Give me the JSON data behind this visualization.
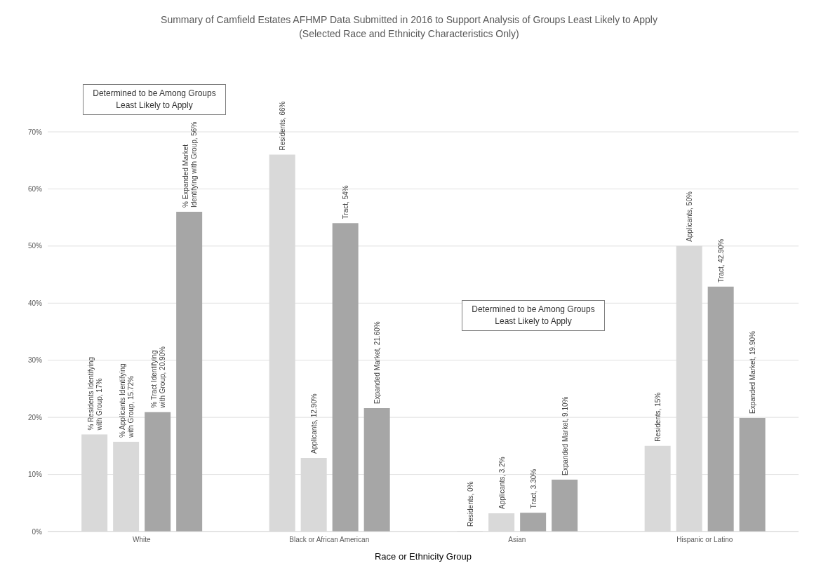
{
  "chart_data": {
    "type": "bar",
    "title": "Summary of Camfield Estates AFHMP Data Submitted in 2016 to Support Analysis of Groups Least Likely to Apply",
    "subtitle": "(Selected Race and Ethnicity Characteristics Only)",
    "xlabel": "Race or Ethnicity Group",
    "categories": [
      "White",
      "Black or African American",
      "Asian",
      "Hispanic or Latino"
    ],
    "series": [
      {
        "color": "#d9d9d9",
        "values": [
          17,
          66,
          0,
          15
        ],
        "value_labels": [
          "% Residents Identifying with Group, 17%",
          "Residents, 66%",
          "Residents, 0%",
          "Residents, 15%"
        ]
      },
      {
        "color": "#d9d9d9",
        "values": [
          15.72,
          12.9,
          3.2,
          50
        ],
        "value_labels": [
          "% Applicants Identifying with Group, 15.72%",
          "Applicants, 12.90%",
          "Applicants, 3.2%",
          "Applicants, 50%"
        ]
      },
      {
        "color": "#a6a6a6",
        "values": [
          20.9,
          54,
          3.3,
          42.9
        ],
        "value_labels": [
          "% Tract Identifying with Group, 20.90%",
          "Tract, 54%",
          "Tract, 3.30%",
          "Tract, 42.90%"
        ]
      },
      {
        "color": "#a6a6a6",
        "values": [
          56,
          21.6,
          9.1,
          19.9
        ],
        "value_labels": [
          "% Expanded Market Identifying with Group, 56%",
          "Expanded Market, 21.60%",
          "Expanded Market, 9.10%",
          "Expanded Market, 19.90%"
        ]
      }
    ],
    "ylim": [
      0,
      70
    ],
    "yticks": [
      {
        "value": 0,
        "label": "0%"
      },
      {
        "value": 10,
        "label": "10%"
      },
      {
        "value": 20,
        "label": "20%"
      },
      {
        "value": 30,
        "label": "30%"
      },
      {
        "value": 40,
        "label": "40%"
      },
      {
        "value": 50,
        "label": "50%"
      },
      {
        "value": 60,
        "label": "60%"
      },
      {
        "value": 70,
        "label": "70%"
      }
    ],
    "grid": "y",
    "legend": false,
    "annotations": [
      "Determined to be Among Groups Least Likely to Apply",
      "Determined to be Among Groups Least Likely to Apply"
    ]
  }
}
